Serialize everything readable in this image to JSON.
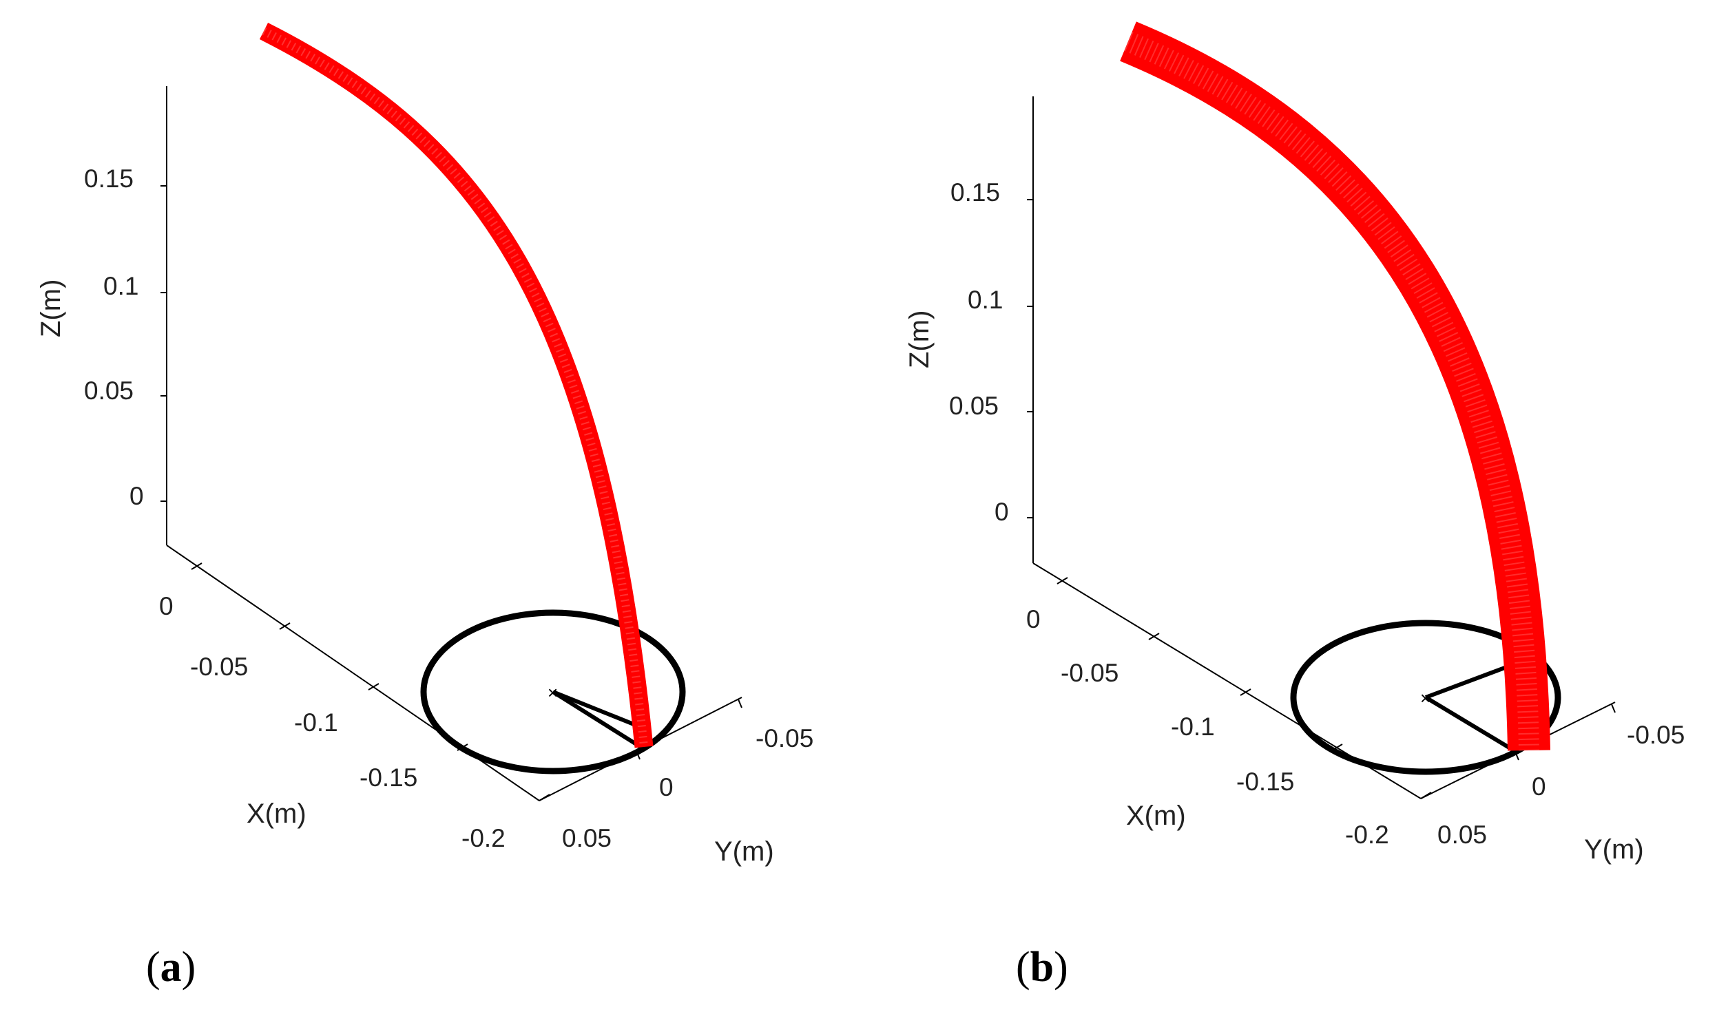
{
  "chart_data": [
    {
      "type": "scatter",
      "panel_label": "a",
      "view": "3d",
      "xlabel": "X(m)",
      "ylabel": "Y(m)",
      "zlabel": "Z(m)",
      "x_ticks": [
        "0",
        "-0.05",
        "-0.1",
        "-0.15",
        "-0.2"
      ],
      "y_ticks": [
        "-0.05",
        "0",
        "0.05"
      ],
      "z_ticks": [
        "0.15",
        "0.1",
        "0.05",
        "0"
      ],
      "colors": {
        "trajectory": "#ff0000",
        "mechanism": "#000000"
      },
      "trajectory_band_width_m": [
        0.004,
        0.005
      ]
    },
    {
      "type": "scatter",
      "panel_label": "b",
      "view": "3d",
      "xlabel": "X(m)",
      "ylabel": "Y(m)",
      "zlabel": "Z(m)",
      "x_ticks": [
        "0",
        "-0.05",
        "-0.1",
        "-0.15",
        "-0.2"
      ],
      "y_ticks": [
        "-0.05",
        "0",
        "0.05"
      ],
      "z_ticks": [
        "0.15",
        "0.1",
        "0.05",
        "0"
      ],
      "colors": {
        "trajectory": "#ff0000",
        "mechanism": "#000000"
      },
      "trajectory_band_width_m": [
        0.01,
        0.018
      ]
    }
  ]
}
